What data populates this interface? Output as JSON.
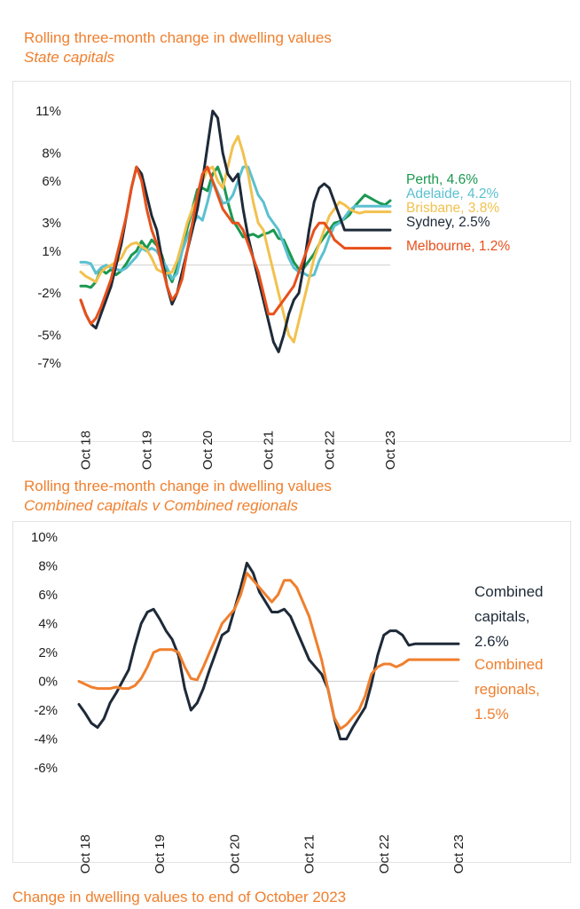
{
  "charts": [
    {
      "title": "Rolling three-month change in dwelling values",
      "subtitle": "State capitals"
    },
    {
      "title": "Rolling three-month change in dwelling values",
      "subtitle": "Combined capitals v Combined regionals"
    }
  ],
  "footer": {
    "title": "Change in dwelling values to end of October 2023"
  },
  "chart_data": [
    {
      "type": "line",
      "title": "Rolling three-month change in dwelling values",
      "subtitle": "State capitals",
      "ylim": [
        -7,
        11
      ],
      "yticks": [
        -7,
        -5,
        -2,
        1,
        3,
        6,
        8,
        11
      ],
      "ytick_labels": [
        "-7%",
        "-5%",
        "-2%",
        "1%",
        "3%",
        "6%",
        "8%",
        "11%"
      ],
      "zero_line": 0,
      "x": [
        0,
        1,
        2,
        3,
        4,
        5,
        6,
        7,
        8,
        9,
        10,
        11,
        12,
        13,
        14,
        15,
        16,
        17,
        18,
        19,
        20,
        21,
        22,
        23,
        24,
        25,
        26,
        27,
        28,
        29,
        30,
        31,
        32,
        33,
        34,
        35,
        36,
        37,
        38,
        39,
        40,
        41,
        42,
        43,
        44,
        45,
        46,
        47,
        48,
        49,
        50,
        51,
        52,
        53,
        54,
        55,
        56,
        57,
        58,
        59,
        60,
        61
      ],
      "xticks": [
        1,
        13,
        25,
        37,
        49,
        61
      ],
      "xtick_labels": [
        "Oct 18",
        "Oct 19",
        "Oct 20",
        "Oct 21",
        "Oct 22",
        "Oct 23"
      ],
      "series": [
        {
          "name": "Perth",
          "label": "Perth, 4.6%",
          "color": "#1a9850",
          "values": [
            -1.5,
            -1.5,
            -1.6,
            -1.2,
            -0.3,
            -0.6,
            -0.3,
            -0.7,
            -0.4,
            0.1,
            0.7,
            1.0,
            1.7,
            1.2,
            1.8,
            1.4,
            0.7,
            -0.5,
            -1.2,
            -0.2,
            1.2,
            2.6,
            4.0,
            5.4,
            5.5,
            5.3,
            6.5,
            7.0,
            6.0,
            4.5,
            3.2,
            2.6,
            2.0,
            2.1,
            2.2,
            2.0,
            2.2,
            2.3,
            2.5,
            1.9,
            1.8,
            1.0,
            0.2,
            -0.3,
            -0.2,
            0.3,
            0.8,
            1.5,
            2.0,
            2.5,
            3.0,
            3.1,
            3.3,
            3.6,
            4.2,
            4.6,
            5.0,
            4.8,
            4.6,
            4.4,
            4.3,
            4.6
          ]
        },
        {
          "name": "Adelaide",
          "label": "Adelaide, 4.2%",
          "color": "#5bc0d0",
          "values": [
            0.2,
            0.2,
            0.1,
            -0.6,
            -0.2,
            0.0,
            -0.2,
            -0.3,
            -0.4,
            -0.2,
            0.2,
            0.6,
            1.2,
            1.0,
            1.2,
            1.0,
            0.4,
            -0.2,
            -1.0,
            -0.6,
            1.0,
            2.0,
            2.8,
            3.5,
            3.2,
            4.5,
            6.0,
            5.2,
            4.4,
            4.5,
            5.0,
            6.0,
            7.0,
            7.0,
            6.0,
            5.0,
            4.5,
            3.5,
            3.0,
            2.5,
            1.5,
            0.5,
            -0.2,
            -0.5,
            -0.6,
            -0.8,
            -0.7,
            0.3,
            1.0,
            2.0,
            2.8,
            3.0,
            3.4,
            3.9,
            4.2,
            4.2,
            4.2,
            4.2,
            4.2,
            4.2,
            4.2,
            4.2
          ]
        },
        {
          "name": "Brisbane",
          "label": "Brisbane, 3.8%",
          "color": "#f2c14e",
          "values": [
            -0.5,
            -0.8,
            -1.0,
            -1.2,
            -0.5,
            -0.2,
            0.0,
            0.2,
            0.5,
            1.2,
            1.5,
            1.6,
            1.3,
            1.1,
            0.5,
            -0.3,
            -0.5,
            -0.6,
            -0.5,
            0.3,
            1.6,
            3.0,
            4.0,
            4.8,
            6.0,
            6.8,
            7.0,
            6.0,
            5.5,
            7.0,
            8.5,
            9.2,
            8.0,
            6.5,
            4.5,
            3.0,
            2.5,
            1.0,
            -0.5,
            -2.0,
            -3.5,
            -5.0,
            -5.5,
            -4.0,
            -2.5,
            -1.0,
            0.5,
            1.5,
            2.5,
            3.5,
            4.0,
            4.5,
            4.3,
            4.0,
            3.8,
            3.7,
            3.8,
            3.8,
            3.8,
            3.8,
            3.8,
            3.8
          ]
        },
        {
          "name": "Sydney",
          "label": "Sydney, 2.5%",
          "color": "#1e2a38",
          "values": [
            -2.5,
            -3.5,
            -4.2,
            -4.5,
            -3.5,
            -2.5,
            -1.5,
            0.0,
            1.5,
            3.5,
            5.5,
            7.0,
            6.5,
            5.0,
            3.5,
            2.5,
            0.5,
            -1.5,
            -2.8,
            -2.0,
            -0.5,
            1.0,
            2.5,
            4.0,
            6.0,
            8.5,
            11.0,
            10.5,
            8.0,
            6.5,
            6.0,
            6.5,
            4.0,
            2.0,
            0.5,
            -1.0,
            -2.5,
            -4.0,
            -5.5,
            -6.2,
            -5.0,
            -3.5,
            -2.5,
            -2.0,
            0.0,
            2.5,
            4.5,
            5.5,
            5.8,
            5.5,
            4.5,
            3.5,
            2.5,
            2.5,
            2.5,
            2.5,
            2.5,
            2.5,
            2.5,
            2.5,
            2.5,
            2.5
          ]
        },
        {
          "name": "Melbourne",
          "label": "Melbourne, 1.2%",
          "color": "#e8501b",
          "values": [
            -2.5,
            -3.5,
            -4.2,
            -3.8,
            -3.0,
            -2.0,
            -1.0,
            0.5,
            2.0,
            3.5,
            5.5,
            7.0,
            6.0,
            4.0,
            2.5,
            1.5,
            0.0,
            -1.5,
            -2.5,
            -2.0,
            -1.0,
            1.0,
            3.0,
            5.0,
            6.5,
            7.0,
            6.0,
            5.0,
            4.0,
            3.5,
            3.0,
            3.0,
            2.5,
            1.5,
            0.5,
            -0.5,
            -2.0,
            -3.5,
            -3.5,
            -3.0,
            -2.5,
            -2.0,
            -1.5,
            -0.5,
            0.5,
            1.5,
            2.5,
            3.0,
            3.0,
            2.5,
            1.8,
            1.5,
            1.2,
            1.2,
            1.2,
            1.2,
            1.2,
            1.2,
            1.2,
            1.2,
            1.2,
            1.2
          ]
        }
      ]
    },
    {
      "type": "line",
      "title": "Rolling three-month change in dwelling values",
      "subtitle": "Combined capitals v Combined regionals",
      "ylim": [
        -6,
        10
      ],
      "yticks": [
        -6,
        -4,
        -2,
        0,
        2,
        4,
        6,
        8,
        10
      ],
      "ytick_labels": [
        "-6%",
        "-4%",
        "-2%",
        "0%",
        "2%",
        "4%",
        "6%",
        "8%",
        "10%"
      ],
      "zero_line": 0,
      "x": [
        0,
        1,
        2,
        3,
        4,
        5,
        6,
        7,
        8,
        9,
        10,
        11,
        12,
        13,
        14,
        15,
        16,
        17,
        18,
        19,
        20,
        21,
        22,
        23,
        24,
        25,
        26,
        27,
        28,
        29,
        30,
        31,
        32,
        33,
        34,
        35,
        36,
        37,
        38,
        39,
        40,
        41,
        42,
        43,
        44,
        45,
        46,
        47,
        48,
        49,
        50,
        51,
        52,
        53,
        54,
        55,
        56,
        57,
        58,
        59,
        60,
        61
      ],
      "xticks": [
        1,
        13,
        25,
        37,
        49,
        61
      ],
      "xtick_labels": [
        "Oct 18",
        "Oct 19",
        "Oct 20",
        "Oct 21",
        "Oct 22",
        "Oct 23"
      ],
      "series": [
        {
          "name": "Combined capitals",
          "label_lines": [
            "Combined",
            "capitals,",
            "2.6%"
          ],
          "color": "#1e2a38",
          "values": [
            -1.6,
            -2.2,
            -2.9,
            -3.2,
            -2.6,
            -1.5,
            -0.8,
            0.0,
            0.8,
            2.5,
            4.0,
            4.8,
            5.0,
            4.3,
            3.5,
            2.9,
            1.8,
            -0.5,
            -2.0,
            -1.5,
            -0.5,
            0.8,
            2.0,
            3.2,
            3.5,
            5.0,
            6.5,
            8.2,
            7.5,
            6.2,
            5.5,
            4.8,
            4.8,
            5.0,
            4.5,
            3.5,
            2.5,
            1.5,
            1.0,
            0.5,
            -0.5,
            -2.5,
            -4.0,
            -4.0,
            -3.2,
            -2.5,
            -1.8,
            -0.2,
            1.8,
            3.2,
            3.5,
            3.5,
            3.2,
            2.5,
            2.6,
            2.6,
            2.6,
            2.6,
            2.6,
            2.6,
            2.6,
            2.6
          ]
        },
        {
          "name": "Combined regionals",
          "label_lines": [
            "Combined",
            "regionals,",
            "1.5%"
          ],
          "color": "#f07f2d",
          "values": [
            0.0,
            -0.2,
            -0.4,
            -0.5,
            -0.5,
            -0.5,
            -0.4,
            -0.5,
            -0.5,
            -0.3,
            0.2,
            1.0,
            2.0,
            2.2,
            2.2,
            2.2,
            2.0,
            1.0,
            0.2,
            0.1,
            1.0,
            2.0,
            3.0,
            4.0,
            4.5,
            5.0,
            6.0,
            7.5,
            7.0,
            6.5,
            6.0,
            5.5,
            6.0,
            7.0,
            7.0,
            6.5,
            5.5,
            4.5,
            3.0,
            1.5,
            -0.5,
            -2.5,
            -3.3,
            -3.0,
            -2.5,
            -2.0,
            -1.0,
            0.5,
            1.0,
            1.2,
            1.2,
            1.0,
            1.2,
            1.5,
            1.5,
            1.5,
            1.5,
            1.5,
            1.5,
            1.5,
            1.5,
            1.5
          ]
        }
      ]
    }
  ]
}
